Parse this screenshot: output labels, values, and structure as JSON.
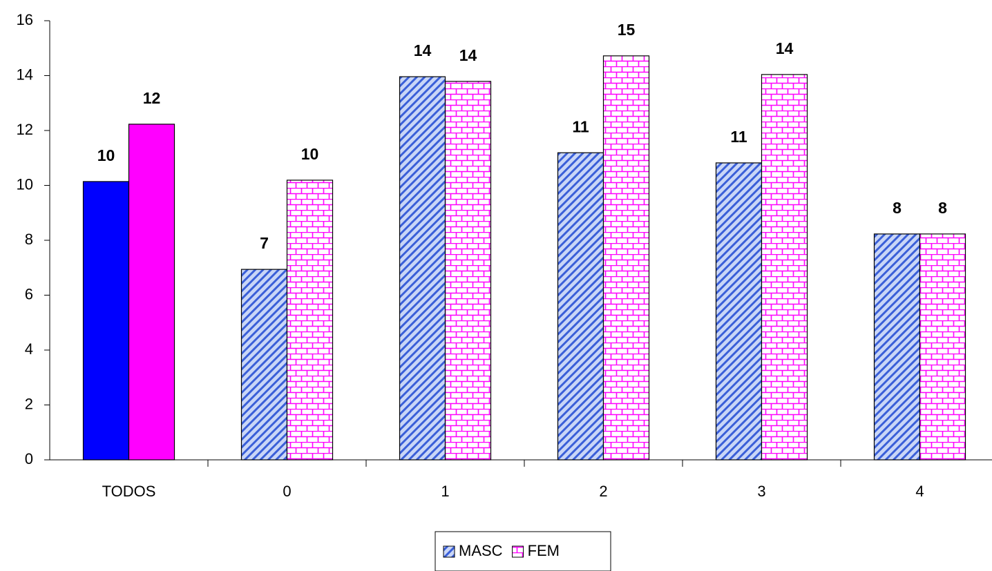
{
  "chart_data": {
    "type": "bar",
    "categories": [
      "TODOS",
      "0",
      "1",
      "2",
      "3",
      "4"
    ],
    "series": [
      {
        "name": "MASC",
        "color": "#0000ff",
        "values": [
          10.14,
          6.94,
          13.96,
          11.19,
          10.82,
          8.23
        ],
        "value_labels": [
          "10",
          "7",
          "14",
          "11",
          "11",
          "8"
        ]
      },
      {
        "name": "FEM",
        "color": "#ff00ff",
        "values": [
          12.23,
          10.19,
          13.79,
          14.72,
          14.04,
          8.23
        ],
        "value_labels": [
          "12",
          "10",
          "14",
          "15",
          "14",
          "8"
        ]
      }
    ],
    "patterned": [
      false,
      true,
      true,
      true,
      true,
      true
    ],
    "ylim": [
      0,
      16
    ],
    "yticks": [
      0,
      2,
      4,
      6,
      8,
      10,
      12,
      14,
      16
    ],
    "legend": "bottom"
  }
}
